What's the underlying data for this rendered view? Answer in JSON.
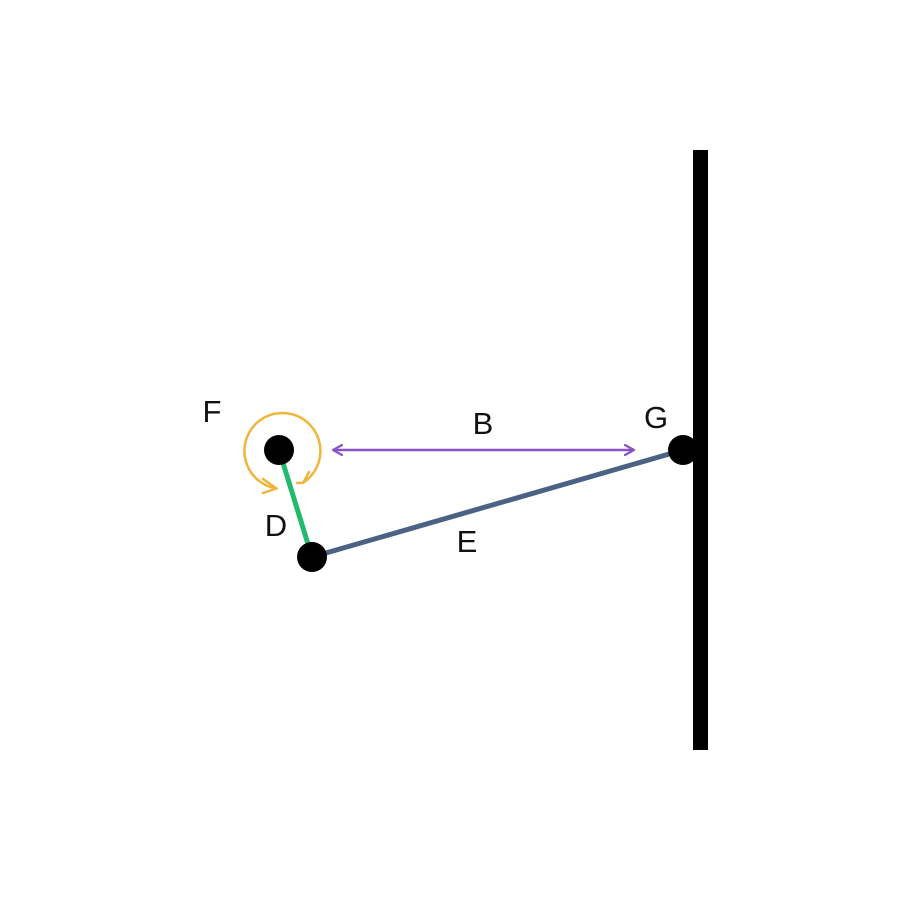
{
  "labels": {
    "distance": "B",
    "crank": "D",
    "connecting_rod": "E",
    "rotation": "F",
    "slider_pin": "G"
  },
  "colors": {
    "wall": "#000000",
    "joint": "#000000",
    "crank": "#22bb6e",
    "connecting_rod": "#4a6283",
    "distance_arrow": "#8a52c8",
    "rotation_arrow": "#f0b63c",
    "label_text": "#111111"
  },
  "icons": {
    "rotation": "circular-arrow-icon",
    "distance": "double-headed-arrow-icon"
  }
}
